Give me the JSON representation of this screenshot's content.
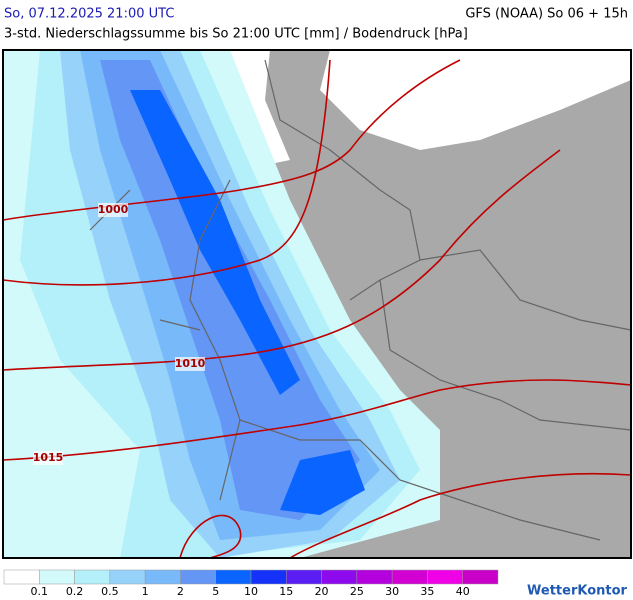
{
  "header": {
    "title": "So, 07.12.2025 21:00 UTC",
    "model": "GFS (NOAA) So 06 + 15h",
    "subtitle": "3-std. Niederschlagssumme bis So 21:00 UTC [mm] / Bodendruck [hPa]"
  },
  "map": {
    "isobar_labels": [
      "1000",
      "1010",
      "1015"
    ]
  },
  "legend": {
    "labels": [
      "0.1",
      "0.2",
      "0.5",
      "1",
      "2",
      "5",
      "10",
      "15",
      "20",
      "25",
      "30",
      "35",
      "40"
    ],
    "colors": [
      "#ffffff",
      "#d2fafa",
      "#b4f0fa",
      "#96d2fa",
      "#78b9fa",
      "#6496f5",
      "#0a64ff",
      "#1432fa",
      "#5a1ef5",
      "#8c0aeb",
      "#b400dc",
      "#d200d2",
      "#f000e6",
      "#c800c8"
    ]
  },
  "brand": "WetterKontor"
}
